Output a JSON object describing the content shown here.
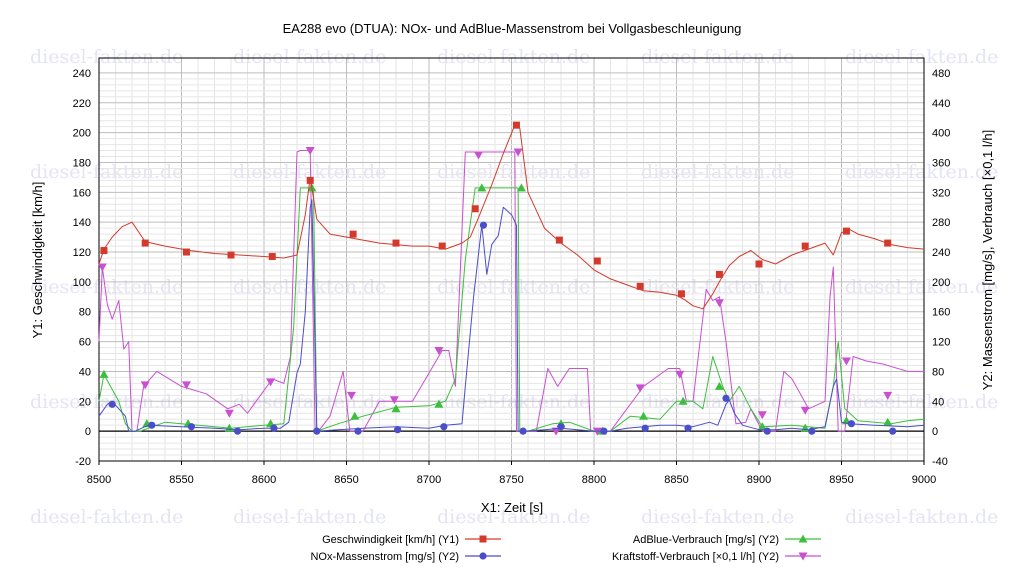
{
  "chart_data": {
    "type": "line",
    "title": "EA288 evo (DTUA): NOx- und AdBlue-Massenstrom bei Vollgasbeschleunigung",
    "xlabel": "X1: Zeit [s]",
    "ylabel_left": "Y1: Geschwindigkeit [km/h]",
    "ylabel_right": "Y2: Massenstrom [mg/s], Verbrauch [×0,1 l/h]",
    "xlim": [
      8500,
      9000
    ],
    "ylim_left": [
      -20,
      250
    ],
    "ylim_right": [
      -40,
      500
    ],
    "x_ticks": [
      "8500",
      "8550",
      "8600",
      "8650",
      "8700",
      "8750",
      "8800",
      "8850",
      "8900",
      "8950",
      "9000"
    ],
    "y_left_ticks": [
      "-20",
      "0",
      "20",
      "40",
      "60",
      "80",
      "100",
      "120",
      "140",
      "160",
      "180",
      "200",
      "220",
      "240"
    ],
    "y_right_ticks": [
      "-40",
      "0",
      "40",
      "80",
      "120",
      "160",
      "200",
      "240",
      "280",
      "320",
      "360",
      "400",
      "440",
      "480"
    ],
    "grid": true,
    "legend_position": "bottom",
    "watermark": "diesel-fakten.de",
    "series": [
      {
        "name": "Geschwindigkeit [km/h] (Y1)",
        "axis": "left",
        "color": "#d33a2c",
        "marker": "square",
        "x": [
          8500,
          8503,
          8508,
          8514,
          8520,
          8528,
          8540,
          8555,
          8570,
          8585,
          8600,
          8612,
          8620,
          8625,
          8628,
          8632,
          8640,
          8650,
          8660,
          8670,
          8680,
          8690,
          8700,
          8710,
          8715,
          8720,
          8725,
          8730,
          8738,
          8745,
          8752,
          8755,
          8760,
          8770,
          8780,
          8790,
          8800,
          8810,
          8820,
          8830,
          8840,
          8850,
          8855,
          8860,
          8866,
          8872,
          8877,
          8882,
          8888,
          8895,
          8902,
          8910,
          8920,
          8930,
          8940,
          8945,
          8950,
          8955,
          8960,
          8970,
          8980,
          8990,
          9000
        ],
        "y": [
          112,
          122,
          130,
          137,
          140,
          127,
          124,
          121,
          119,
          118,
          117,
          116,
          118,
          145,
          170,
          142,
          132,
          130,
          128,
          126,
          125,
          124,
          124,
          122,
          124,
          126,
          130,
          143,
          165,
          186,
          205,
          203,
          160,
          136,
          126,
          118,
          108,
          102,
          98,
          94,
          93,
          91,
          88,
          84,
          82,
          92,
          102,
          111,
          117,
          121,
          115,
          112,
          118,
          122,
          126,
          118,
          133,
          135,
          132,
          129,
          125,
          123,
          122
        ],
        "markers_x": [
          8503,
          8528,
          8553,
          8580,
          8605,
          8628,
          8654,
          8680,
          8708,
          8728,
          8753,
          8779,
          8802,
          8828,
          8853,
          8876,
          8900,
          8928,
          8953,
          8978
        ],
        "markers_y": [
          121,
          126,
          120,
          118,
          117,
          168,
          132,
          126,
          124,
          149,
          205,
          128,
          114,
          97,
          92,
          105,
          112,
          124,
          134,
          126
        ]
      },
      {
        "name": "NOx-Massenstrom [mg/s] (Y2)",
        "axis": "right",
        "color": "#4a4ec9",
        "marker": "circle",
        "x": [
          8500,
          8505,
          8508,
          8512,
          8516,
          8518,
          8522,
          8530,
          8550,
          8570,
          8585,
          8600,
          8610,
          8615,
          8620,
          8622,
          8625,
          8628,
          8629,
          8632,
          8645,
          8660,
          8680,
          8700,
          8710,
          8720,
          8722,
          8727,
          8732,
          8735,
          8738,
          8742,
          8745,
          8750,
          8753,
          8754,
          8758,
          8770,
          8780,
          8790,
          8800,
          8810,
          8820,
          8830,
          8840,
          8850,
          8860,
          8870,
          8875,
          8880,
          8882,
          8885,
          8890,
          8900,
          8910,
          8920,
          8930,
          8940,
          8945,
          8947,
          8950,
          8955,
          8970,
          8990,
          9000
        ],
        "y": [
          20,
          36,
          40,
          30,
          20,
          0,
          0,
          8,
          6,
          4,
          2,
          4,
          4,
          12,
          78,
          90,
          160,
          300,
          310,
          0,
          2,
          4,
          6,
          4,
          8,
          10,
          60,
          180,
          276,
          210,
          250,
          262,
          300,
          290,
          276,
          0,
          0,
          2,
          4,
          2,
          0,
          0,
          4,
          6,
          8,
          8,
          6,
          12,
          8,
          36,
          42,
          24,
          8,
          2,
          2,
          4,
          2,
          6,
          60,
          70,
          12,
          10,
          8,
          6,
          8
        ],
        "markers_x": [
          8508,
          8532,
          8556,
          8584,
          8606,
          8632,
          8657,
          8681,
          8709,
          8733,
          8757,
          8780,
          8806,
          8831,
          8857,
          8880,
          8905,
          8932,
          8956,
          8981
        ],
        "markers_y": [
          36,
          8,
          6,
          0,
          4,
          0,
          0,
          2,
          6,
          276,
          0,
          6,
          0,
          4,
          4,
          44,
          0,
          0,
          10,
          0
        ]
      },
      {
        "name": "AdBlue-Verbrauch [mg/s] (Y2)",
        "axis": "right",
        "color": "#3cbf3c",
        "marker": "triangle-up",
        "x": [
          8500,
          8503,
          8507,
          8512,
          8516,
          8520,
          8525,
          8540,
          8560,
          8580,
          8600,
          8612,
          8618,
          8622,
          8626,
          8630,
          8632,
          8645,
          8660,
          8680,
          8700,
          8710,
          8716,
          8722,
          8728,
          8740,
          8750,
          8754,
          8755,
          8760,
          8775,
          8785,
          8800,
          8810,
          8822,
          8840,
          8850,
          8860,
          8866,
          8872,
          8878,
          8882,
          8888,
          8895,
          8902,
          8920,
          8940,
          8945,
          8948,
          8952,
          8960,
          8980,
          8990,
          9000
        ],
        "y": [
          40,
          76,
          60,
          40,
          10,
          0,
          0,
          12,
          8,
          4,
          8,
          10,
          140,
          326,
          326,
          326,
          0,
          10,
          20,
          32,
          34,
          40,
          70,
          230,
          326,
          326,
          326,
          326,
          0,
          0,
          10,
          12,
          0,
          0,
          20,
          16,
          40,
          40,
          30,
          100,
          60,
          40,
          60,
          30,
          6,
          8,
          4,
          60,
          120,
          30,
          14,
          10,
          14,
          16
        ],
        "markers_x": [
          8503,
          8529,
          8554,
          8579,
          8604,
          8629,
          8655,
          8680,
          8706,
          8732,
          8756,
          8780,
          8805,
          8830,
          8854,
          8876,
          8902,
          8928,
          8953,
          8978
        ],
        "markers_y": [
          76,
          10,
          10,
          4,
          10,
          326,
          20,
          30,
          36,
          326,
          326,
          10,
          0,
          20,
          40,
          60,
          6,
          4,
          14,
          12
        ]
      },
      {
        "name": "Kraftstoff-Verbrauch [×0,1 l/h] (Y2)",
        "axis": "right",
        "color": "#c950d0",
        "marker": "triangle-down",
        "x": [
          8500,
          8502,
          8505,
          8508,
          8512,
          8515,
          8518,
          8520,
          8523,
          8527,
          8535,
          8550,
          8565,
          8578,
          8585,
          8590,
          8605,
          8612,
          8616,
          8620,
          8622,
          8625,
          8628,
          8631,
          8633,
          8640,
          8648,
          8652,
          8660,
          8670,
          8690,
          8708,
          8712,
          8716,
          8722,
          8725,
          8732,
          8748,
          8752,
          8753,
          8756,
          8760,
          8765,
          8772,
          8778,
          8785,
          8792,
          8796,
          8798,
          8810,
          8830,
          8845,
          8852,
          8856,
          8860,
          8868,
          8872,
          8876,
          8880,
          8886,
          8892,
          8895,
          8902,
          8910,
          8915,
          8920,
          8925,
          8930,
          8940,
          8943,
          8945,
          8948,
          8952,
          8957,
          8965,
          8975,
          8990,
          9000
        ],
        "y": [
          120,
          220,
          170,
          150,
          175,
          110,
          120,
          0,
          0,
          60,
          80,
          60,
          50,
          30,
          36,
          24,
          70,
          64,
          100,
          374,
          376,
          376,
          376,
          0,
          0,
          20,
          80,
          0,
          0,
          40,
          40,
          108,
          108,
          60,
          374,
          374,
          374,
          374,
          374,
          0,
          0,
          0,
          0,
          84,
          60,
          84,
          84,
          84,
          0,
          0,
          60,
          84,
          84,
          40,
          40,
          190,
          175,
          180,
          120,
          10,
          12,
          30,
          0,
          0,
          80,
          70,
          50,
          30,
          40,
          180,
          220,
          0,
          0,
          100,
          94,
          90,
          80,
          80
        ],
        "markers_x": [
          8502,
          8528,
          8553,
          8579,
          8604,
          8628,
          8653,
          8679,
          8706,
          8730,
          8754,
          8777,
          8802,
          8828,
          8852,
          8876,
          8902,
          8928,
          8953,
          8978
        ],
        "markers_y": [
          220,
          62,
          62,
          24,
          66,
          376,
          48,
          42,
          108,
          370,
          374,
          0,
          0,
          58,
          76,
          172,
          22,
          28,
          94,
          48
        ]
      }
    ]
  }
}
